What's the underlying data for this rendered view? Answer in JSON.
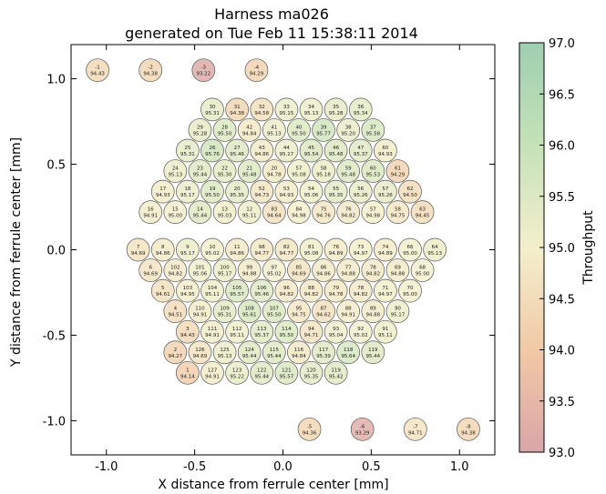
{
  "chart_data": {
    "type": "scatter",
    "title": "Harness ma026",
    "subtitle": "generated on Tue Feb 11 15:38:11 2014",
    "xlabel": "X distance from ferrule center [mm]",
    "ylabel": "Y distance from ferrule center [mm]",
    "xlim": [
      -1.2,
      1.2
    ],
    "ylim": [
      -1.2,
      1.2
    ],
    "xticks": [
      "-1.0",
      "-0.5",
      "0.0",
      "0.5",
      "1.0"
    ],
    "yticks": [
      "1.0",
      "0.5",
      "0.0",
      "-0.5",
      "-1.0"
    ],
    "colorbar": {
      "label": "Throughput",
      "min": 93.0,
      "max": 97.0,
      "ticks": [
        "97.0",
        "96.5",
        "96.0",
        "95.5",
        "95.0",
        "94.5",
        "94.0",
        "93.5",
        "93.0"
      ],
      "colors": [
        "#d9a5a9",
        "#f2c9a6",
        "#f3efcc",
        "#c5e2b8",
        "#9fcfb0"
      ]
    },
    "grid": false,
    "fibers": [
      {
        "label": "-1",
        "x": -1.05,
        "y": 1.05,
        "value": 94.43
      },
      {
        "label": "-2",
        "x": -0.75,
        "y": 1.05,
        "value": 94.38
      },
      {
        "label": "-3",
        "x": -0.45,
        "y": 1.05,
        "value": 93.22
      },
      {
        "label": "-4",
        "x": -0.15,
        "y": 1.05,
        "value": 94.29
      },
      {
        "label": "-5",
        "x": 0.15,
        "y": -1.05,
        "value": 94.36
      },
      {
        "label": "-6",
        "x": 0.45,
        "y": -1.05,
        "value": 93.29
      },
      {
        "label": "-7",
        "x": 0.75,
        "y": -1.05,
        "value": 94.71
      },
      {
        "label": "-8",
        "x": 1.05,
        "y": -1.05,
        "value": 94.38
      },
      {
        "label": "30",
        "x": -0.4,
        "y": 0.82,
        "value": 95.31
      },
      {
        "label": "31",
        "x": -0.26,
        "y": 0.82,
        "value": 94.38
      },
      {
        "label": "32",
        "x": -0.12,
        "y": 0.82,
        "value": 94.58
      },
      {
        "label": "33",
        "x": 0.02,
        "y": 0.82,
        "value": 95.15
      },
      {
        "label": "34",
        "x": 0.16,
        "y": 0.82,
        "value": 95.13
      },
      {
        "label": "35",
        "x": 0.3,
        "y": 0.82,
        "value": 95.28
      },
      {
        "label": "36",
        "x": 0.44,
        "y": 0.82,
        "value": 95.34
      },
      {
        "label": "29",
        "x": -0.47,
        "y": 0.7,
        "value": 95.28
      },
      {
        "label": "28",
        "x": -0.33,
        "y": 0.7,
        "value": 95.5
      },
      {
        "label": "42",
        "x": -0.19,
        "y": 0.7,
        "value": 94.84
      },
      {
        "label": "41",
        "x": -0.05,
        "y": 0.7,
        "value": 95.13
      },
      {
        "label": "40",
        "x": 0.09,
        "y": 0.7,
        "value": 95.5
      },
      {
        "label": "39",
        "x": 0.23,
        "y": 0.7,
        "value": 95.77
      },
      {
        "label": "38",
        "x": 0.37,
        "y": 0.7,
        "value": 95.2
      },
      {
        "label": "37",
        "x": 0.51,
        "y": 0.7,
        "value": 95.58
      },
      {
        "label": "25",
        "x": -0.54,
        "y": 0.58,
        "value": 95.31
      },
      {
        "label": "26",
        "x": -0.4,
        "y": 0.58,
        "value": 95.76
      },
      {
        "label": "27",
        "x": -0.26,
        "y": 0.58,
        "value": 95.46
      },
      {
        "label": "43",
        "x": -0.12,
        "y": 0.58,
        "value": 94.86
      },
      {
        "label": "44",
        "x": 0.02,
        "y": 0.58,
        "value": 95.17
      },
      {
        "label": "45",
        "x": 0.16,
        "y": 0.58,
        "value": 95.54
      },
      {
        "label": "46",
        "x": 0.3,
        "y": 0.58,
        "value": 95.48
      },
      {
        "label": "47",
        "x": 0.44,
        "y": 0.58,
        "value": 95.37
      },
      {
        "label": "60",
        "x": 0.58,
        "y": 0.58,
        "value": 94.93
      },
      {
        "label": "24",
        "x": -0.61,
        "y": 0.46,
        "value": 95.13
      },
      {
        "label": "23",
        "x": -0.47,
        "y": 0.46,
        "value": 95.44
      },
      {
        "label": "22",
        "x": -0.33,
        "y": 0.46,
        "value": 95.3
      },
      {
        "label": "21",
        "x": -0.19,
        "y": 0.46,
        "value": 95.48
      },
      {
        "label": "20",
        "x": -0.05,
        "y": 0.46,
        "value": 94.78
      },
      {
        "label": "57",
        "x": 0.09,
        "y": 0.46,
        "value": 95.08
      },
      {
        "label": "58",
        "x": 0.23,
        "y": 0.46,
        "value": 95.18
      },
      {
        "label": "59",
        "x": 0.37,
        "y": 0.46,
        "value": 95.48
      },
      {
        "label": "60",
        "x": 0.51,
        "y": 0.46,
        "value": 95.53
      },
      {
        "label": "61",
        "x": 0.65,
        "y": 0.46,
        "value": 94.29
      },
      {
        "label": "17",
        "x": -0.68,
        "y": 0.34,
        "value": 94.93
      },
      {
        "label": "18",
        "x": -0.54,
        "y": 0.34,
        "value": 95.17
      },
      {
        "label": "19",
        "x": -0.4,
        "y": 0.34,
        "value": 95.5
      },
      {
        "label": "20",
        "x": -0.26,
        "y": 0.34,
        "value": 95.35
      },
      {
        "label": "52",
        "x": -0.12,
        "y": 0.34,
        "value": 94.73
      },
      {
        "label": "53",
        "x": 0.02,
        "y": 0.34,
        "value": 94.93
      },
      {
        "label": "54",
        "x": 0.16,
        "y": 0.34,
        "value": 95.06
      },
      {
        "label": "55",
        "x": 0.3,
        "y": 0.34,
        "value": 95.35
      },
      {
        "label": "56",
        "x": 0.44,
        "y": 0.34,
        "value": 95.26
      },
      {
        "label": "57",
        "x": 0.58,
        "y": 0.34,
        "value": 95.26
      },
      {
        "label": "62",
        "x": 0.72,
        "y": 0.34,
        "value": 94.5
      },
      {
        "label": "16",
        "x": -0.75,
        "y": 0.22,
        "value": 94.91
      },
      {
        "label": "15",
        "x": -0.61,
        "y": 0.22,
        "value": 95.0
      },
      {
        "label": "14",
        "x": -0.47,
        "y": 0.22,
        "value": 95.44
      },
      {
        "label": "13",
        "x": -0.33,
        "y": 0.22,
        "value": 95.03
      },
      {
        "label": "12",
        "x": -0.19,
        "y": 0.22,
        "value": 95.11
      },
      {
        "label": "83",
        "x": -0.05,
        "y": 0.22,
        "value": 94.64
      },
      {
        "label": "84",
        "x": 0.09,
        "y": 0.22,
        "value": 94.98
      },
      {
        "label": "75",
        "x": 0.23,
        "y": 0.22,
        "value": 94.76
      },
      {
        "label": "76",
        "x": 0.37,
        "y": 0.22,
        "value": 94.82
      },
      {
        "label": "57",
        "x": 0.51,
        "y": 0.22,
        "value": 94.98
      },
      {
        "label": "58",
        "x": 0.65,
        "y": 0.22,
        "value": 94.75
      },
      {
        "label": "63",
        "x": 0.79,
        "y": 0.22,
        "value": 94.45
      },
      {
        "label": "7",
        "x": -0.82,
        "y": 0.0,
        "value": 94.69
      },
      {
        "label": "8",
        "x": -0.68,
        "y": 0.0,
        "value": 94.86
      },
      {
        "label": "9",
        "x": -0.54,
        "y": 0.0,
        "value": 95.17
      },
      {
        "label": "10",
        "x": -0.4,
        "y": 0.0,
        "value": 95.02
      },
      {
        "label": "11",
        "x": -0.26,
        "y": 0.0,
        "value": 94.86
      },
      {
        "label": "98",
        "x": -0.12,
        "y": 0.0,
        "value": 94.77
      },
      {
        "label": "82",
        "x": 0.02,
        "y": 0.0,
        "value": 94.77
      },
      {
        "label": "81",
        "x": 0.16,
        "y": 0.0,
        "value": 95.08
      },
      {
        "label": "76",
        "x": 0.3,
        "y": 0.0,
        "value": 94.89
      },
      {
        "label": "73",
        "x": 0.44,
        "y": 0.0,
        "value": 94.97
      },
      {
        "label": "74",
        "x": 0.58,
        "y": 0.0,
        "value": 94.89
      },
      {
        "label": "66",
        "x": 0.72,
        "y": 0.0,
        "value": 95.0
      },
      {
        "label": "64",
        "x": 0.86,
        "y": 0.0,
        "value": 95.13
      },
      {
        "label": "6",
        "x": -0.75,
        "y": -0.12,
        "value": 94.69
      },
      {
        "label": "102",
        "x": -0.61,
        "y": -0.12,
        "value": 94.82
      },
      {
        "label": "101",
        "x": -0.47,
        "y": -0.12,
        "value": 95.06
      },
      {
        "label": "100",
        "x": -0.33,
        "y": -0.12,
        "value": 95.17
      },
      {
        "label": "99",
        "x": -0.19,
        "y": -0.12,
        "value": 94.88
      },
      {
        "label": "97",
        "x": -0.05,
        "y": -0.12,
        "value": 95.02
      },
      {
        "label": "85",
        "x": 0.09,
        "y": -0.12,
        "value": 94.69
      },
      {
        "label": "86",
        "x": 0.23,
        "y": -0.12,
        "value": 94.86
      },
      {
        "label": "77",
        "x": 0.37,
        "y": -0.12,
        "value": 94.88
      },
      {
        "label": "78",
        "x": 0.51,
        "y": -0.12,
        "value": 94.82
      },
      {
        "label": "69",
        "x": 0.65,
        "y": -0.12,
        "value": 94.88
      },
      {
        "label": "68",
        "x": 0.79,
        "y": -0.12,
        "value": 95.0
      },
      {
        "label": "5",
        "x": -0.68,
        "y": -0.24,
        "value": 94.61
      },
      {
        "label": "103",
        "x": -0.54,
        "y": -0.24,
        "value": 94.95
      },
      {
        "label": "104",
        "x": -0.4,
        "y": -0.24,
        "value": 95.11
      },
      {
        "label": "105",
        "x": -0.26,
        "y": -0.24,
        "value": 95.57
      },
      {
        "label": "106",
        "x": -0.12,
        "y": -0.24,
        "value": 95.46
      },
      {
        "label": "96",
        "x": 0.02,
        "y": -0.24,
        "value": 94.82
      },
      {
        "label": "88",
        "x": 0.16,
        "y": -0.24,
        "value": 94.82
      },
      {
        "label": "79",
        "x": 0.3,
        "y": -0.24,
        "value": 94.78
      },
      {
        "label": "78",
        "x": 0.44,
        "y": -0.24,
        "value": 94.82
      },
      {
        "label": "71",
        "x": 0.58,
        "y": -0.24,
        "value": 94.97
      },
      {
        "label": "70",
        "x": 0.72,
        "y": -0.24,
        "value": 95.0
      },
      {
        "label": "4",
        "x": -0.61,
        "y": -0.36,
        "value": 94.51
      },
      {
        "label": "110",
        "x": -0.47,
        "y": -0.36,
        "value": 94.91
      },
      {
        "label": "109",
        "x": -0.33,
        "y": -0.36,
        "value": 95.31
      },
      {
        "label": "108",
        "x": -0.19,
        "y": -0.36,
        "value": 95.61
      },
      {
        "label": "107",
        "x": -0.05,
        "y": -0.36,
        "value": 95.5
      },
      {
        "label": "95",
        "x": 0.09,
        "y": -0.36,
        "value": 94.75
      },
      {
        "label": "87",
        "x": 0.23,
        "y": -0.36,
        "value": 94.62
      },
      {
        "label": "88",
        "x": 0.37,
        "y": -0.36,
        "value": 94.91
      },
      {
        "label": "89",
        "x": 0.51,
        "y": -0.36,
        "value": 94.88
      },
      {
        "label": "90",
        "x": 0.65,
        "y": -0.36,
        "value": 95.17
      },
      {
        "label": "3",
        "x": -0.54,
        "y": -0.48,
        "value": 94.43
      },
      {
        "label": "111",
        "x": -0.4,
        "y": -0.48,
        "value": 94.91
      },
      {
        "label": "112",
        "x": -0.26,
        "y": -0.48,
        "value": 95.11
      },
      {
        "label": "113",
        "x": -0.12,
        "y": -0.48,
        "value": 95.37
      },
      {
        "label": "114",
        "x": 0.02,
        "y": -0.48,
        "value": 95.5
      },
      {
        "label": "94",
        "x": 0.16,
        "y": -0.48,
        "value": 94.71
      },
      {
        "label": "93",
        "x": 0.3,
        "y": -0.48,
        "value": 95.04
      },
      {
        "label": "92",
        "x": 0.44,
        "y": -0.48,
        "value": 95.02
      },
      {
        "label": "91",
        "x": 0.58,
        "y": -0.48,
        "value": 95.11
      },
      {
        "label": "2",
        "x": -0.61,
        "y": -0.6,
        "value": 94.27
      },
      {
        "label": "126",
        "x": -0.47,
        "y": -0.6,
        "value": 94.69
      },
      {
        "label": "125",
        "x": -0.33,
        "y": -0.6,
        "value": 95.13
      },
      {
        "label": "124",
        "x": -0.19,
        "y": -0.6,
        "value": 95.44
      },
      {
        "label": "115",
        "x": -0.05,
        "y": -0.6,
        "value": 95.44
      },
      {
        "label": "116",
        "x": 0.09,
        "y": -0.6,
        "value": 94.84
      },
      {
        "label": "117",
        "x": 0.23,
        "y": -0.6,
        "value": 95.39
      },
      {
        "label": "118",
        "x": 0.37,
        "y": -0.6,
        "value": 95.64
      },
      {
        "label": "119",
        "x": 0.51,
        "y": -0.6,
        "value": 95.44
      },
      {
        "label": "1",
        "x": -0.54,
        "y": -0.72,
        "value": 94.14
      },
      {
        "label": "127",
        "x": -0.4,
        "y": -0.72,
        "value": 94.91
      },
      {
        "label": "123",
        "x": -0.26,
        "y": -0.72,
        "value": 95.22
      },
      {
        "label": "122",
        "x": -0.12,
        "y": -0.72,
        "value": 95.44
      },
      {
        "label": "121",
        "x": 0.02,
        "y": -0.72,
        "value": 95.57
      },
      {
        "label": "120",
        "x": 0.16,
        "y": -0.72,
        "value": 95.35
      },
      {
        "label": "119",
        "x": 0.3,
        "y": -0.72,
        "value": 95.42
      }
    ]
  }
}
